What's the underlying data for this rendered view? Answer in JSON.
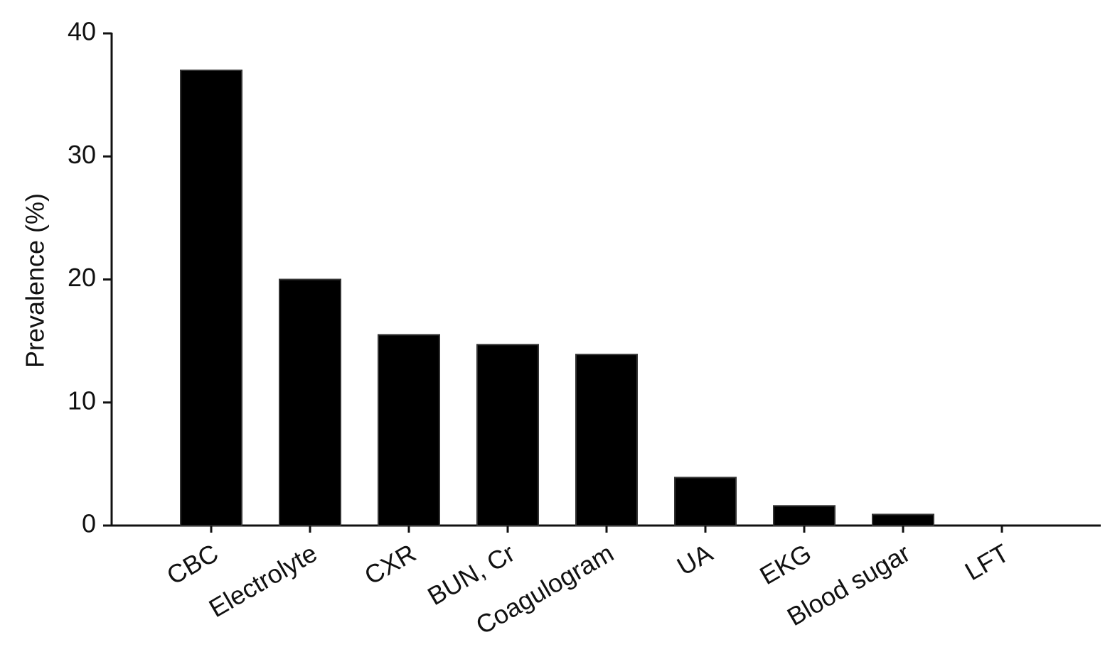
{
  "chart_data": {
    "type": "bar",
    "y_label": "Prevalence (%)",
    "categories": [
      "CBC",
      "Electrolyte",
      "CXR",
      "BUN, Cr",
      "Coagulogram",
      "UA",
      "EKG",
      "Blood sugar",
      "LFT"
    ],
    "values": [
      37,
      20,
      15.5,
      14.7,
      13.9,
      3.9,
      1.6,
      0.9,
      0
    ],
    "color": "#000000",
    "ylim": [
      0,
      40
    ],
    "yticks": [
      0,
      10,
      20,
      30,
      40
    ],
    "grid": false
  }
}
